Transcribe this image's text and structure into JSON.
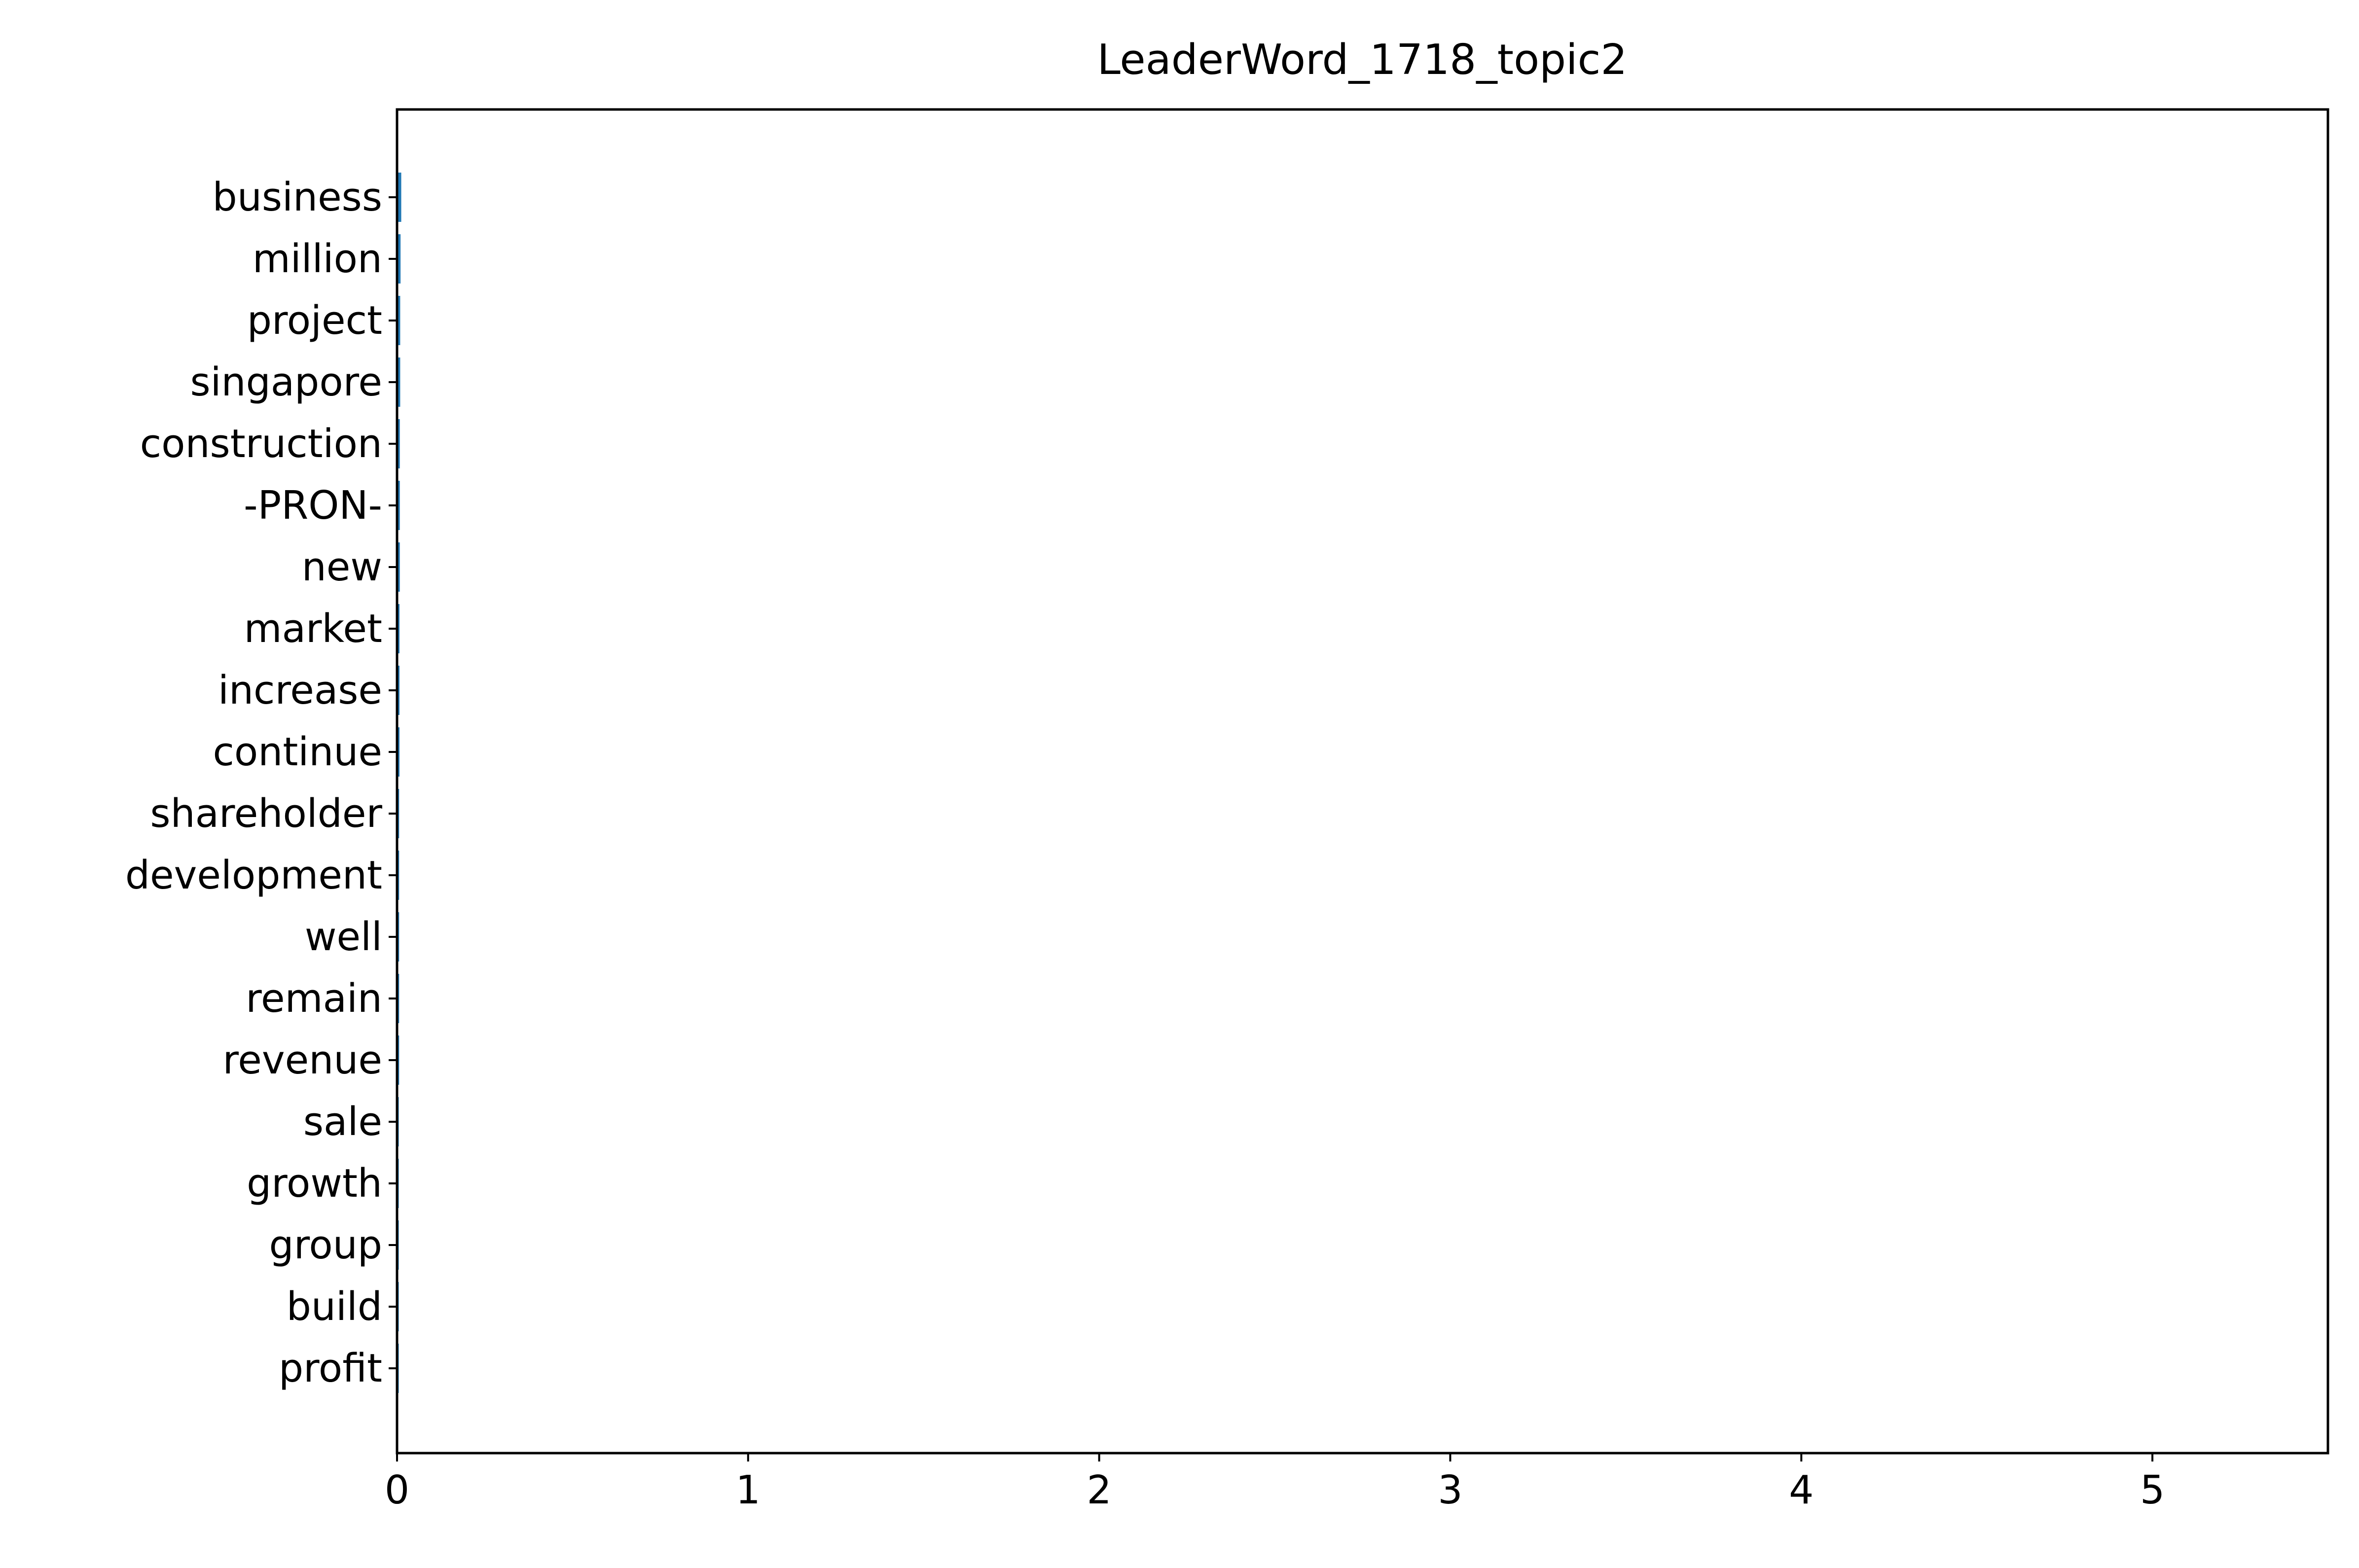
{
  "chart_data": {
    "type": "bar",
    "orientation": "horizontal",
    "title": "LeaderWord_1718_topic2",
    "xlabel": "",
    "ylabel": "",
    "categories": [
      "business",
      "million",
      "project",
      "singapore",
      "construction",
      "-PRON-",
      "new",
      "market",
      "increase",
      "continue",
      "shareholder",
      "development",
      "well",
      "remain",
      "revenue",
      "sale",
      "growth",
      "group",
      "build",
      "profit"
    ],
    "values": [
      0.012,
      0.01,
      0.009,
      0.009,
      0.008,
      0.008,
      0.008,
      0.007,
      0.007,
      0.007,
      0.006,
      0.006,
      0.006,
      0.006,
      0.006,
      0.005,
      0.005,
      0.005,
      0.005,
      0.005
    ],
    "xlim": [
      0,
      5.5
    ],
    "xticks": [
      "0",
      "1",
      "2",
      "3",
      "4",
      "5"
    ],
    "grid": false,
    "bar_color": "#1f77b4"
  }
}
